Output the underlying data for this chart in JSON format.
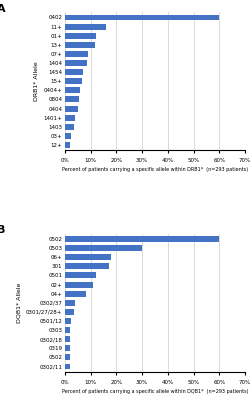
{
  "panel_a": {
    "title": "A",
    "categories": [
      "0402",
      "11+",
      "01+",
      "13+",
      "07+",
      "1404",
      "1454",
      "15+",
      "0404+",
      "0804",
      "0404",
      "1401+",
      "1403",
      "03+",
      "12+"
    ],
    "values": [
      60,
      16,
      12,
      11.5,
      9,
      8.5,
      7,
      6.5,
      6,
      5.5,
      5,
      4,
      3.5,
      2.5,
      2
    ],
    "xlabel": "Percent of patients carrying a specific allele within DRB1*  (n=293 patients)",
    "ylabel": "DRB1* Allele",
    "xlim": [
      0,
      70
    ],
    "xticks": [
      0,
      10,
      20,
      30,
      40,
      50,
      60,
      70
    ],
    "xticklabels": [
      "0%",
      "10%",
      "20%",
      "30%",
      "40%",
      "50%",
      "60%",
      "70%"
    ],
    "bar_color": "#4472C4"
  },
  "panel_b": {
    "title": "B",
    "categories": [
      "0502",
      "0503",
      "06+",
      "301",
      "0501",
      "02+",
      "04+",
      "0302/37",
      "0301/27/28+",
      "0501/12",
      "0303",
      "0302/18",
      "0319",
      "0502",
      "0302/11"
    ],
    "values": [
      60,
      30,
      18,
      17,
      12,
      11,
      8,
      4,
      3.5,
      2.5,
      2,
      2,
      2,
      2,
      2
    ],
    "xlabel": "Percent of patients carrying a specific allele within DQB1*  (n=293 patients)",
    "ylabel": "DQB1* Allele",
    "xlim": [
      0,
      70
    ],
    "xticks": [
      0,
      10,
      20,
      30,
      40,
      50,
      60,
      70
    ],
    "xticklabels": [
      "0%",
      "10%",
      "20%",
      "30%",
      "40%",
      "50%",
      "60%",
      "70%"
    ],
    "bar_color": "#4472C4"
  },
  "background_color": "#ffffff",
  "figure_width": 2.5,
  "figure_height": 4.0,
  "dpi": 100
}
